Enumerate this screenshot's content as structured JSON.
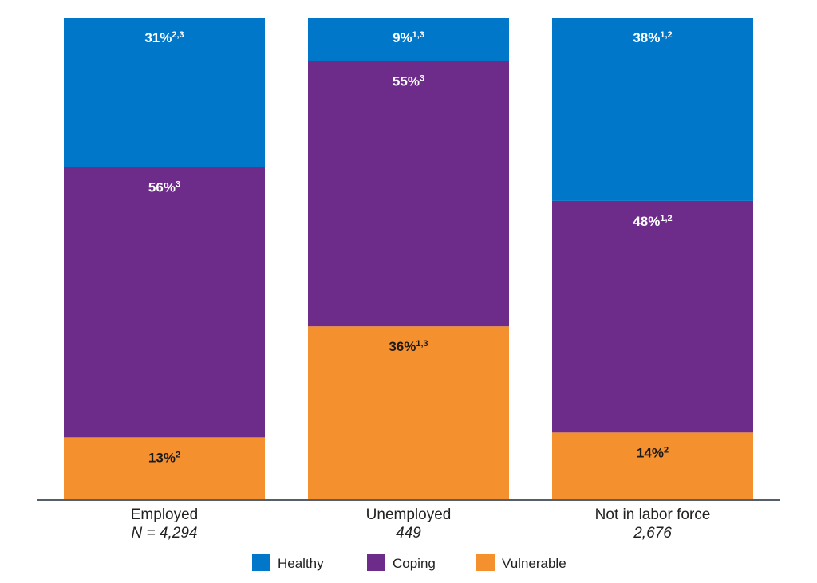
{
  "chart_data": {
    "type": "bar",
    "stacked": true,
    "categories": [
      "Employed",
      "Unemployed",
      "Not in labor force"
    ],
    "sample_labels": [
      "N = 4,294",
      "449",
      "2,676"
    ],
    "series": [
      {
        "name": "Healthy",
        "color": "#0077C8",
        "label_color": "#ffffff",
        "values": [
          31,
          9,
          38
        ],
        "notes": [
          "2,3",
          "1,3",
          "1,2"
        ]
      },
      {
        "name": "Coping",
        "color": "#6E2C8A",
        "label_color": "#ffffff",
        "values": [
          56,
          55,
          48
        ],
        "notes": [
          "3",
          "3",
          "1,2"
        ]
      },
      {
        "name": "Vulnerable",
        "color": "#F5902F",
        "label_color": "#1a1a1a",
        "values": [
          13,
          36,
          14
        ],
        "notes": [
          "2",
          "1,3",
          "2"
        ]
      }
    ],
    "stack_order_bottom_to_top": [
      "Vulnerable",
      "Coping",
      "Healthy"
    ],
    "ylim": [
      0,
      100
    ],
    "value_suffix": "%",
    "legend": "bottom-center",
    "axis_color": "#555e6b"
  }
}
